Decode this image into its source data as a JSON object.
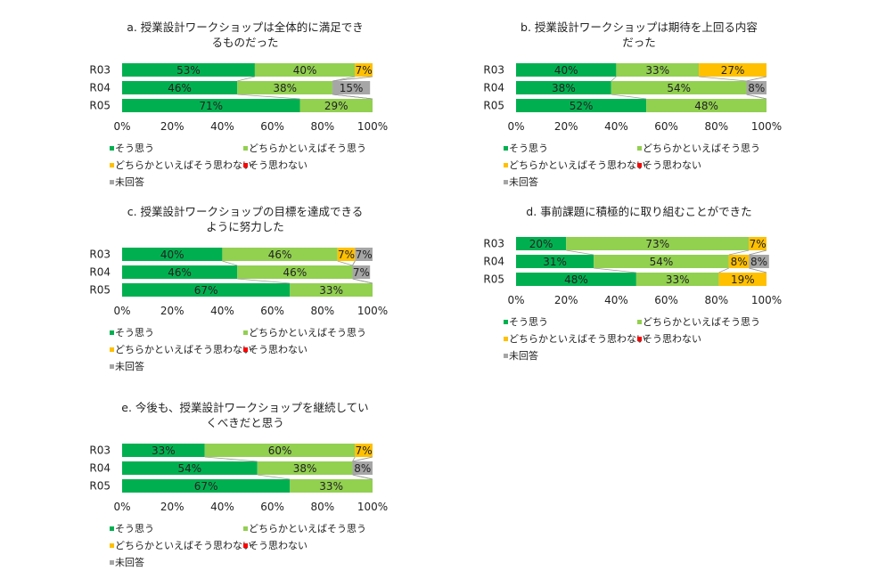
{
  "legend": [
    "そう思う",
    "どちらかといえばそう思う",
    "どちらかといえばそう思わない",
    "そう思わない",
    "未回答"
  ],
  "colors": [
    "#00B050",
    "#92D050",
    "#FFC000",
    "#FF0000",
    "#A6A6A6"
  ],
  "chart_data": [
    {
      "type": "bar",
      "stacked": "100%",
      "orientation": "horizontal",
      "title": "a.  授業設計ワークショップは全体的に満足できるものだった",
      "title_lines": [
        "a.  授業設計ワークショップは全体的に満足でき",
        "るものだった"
      ],
      "categories": [
        "R03",
        "R04",
        "R05"
      ],
      "xlim": [
        0,
        100
      ],
      "x_ticks": [
        "0%",
        "20%",
        "40%",
        "60%",
        "80%",
        "100%"
      ],
      "series": [
        {
          "name": "そう思う",
          "values": [
            53,
            46,
            71
          ]
        },
        {
          "name": "どちらかといえばそう思う",
          "values": [
            40,
            38,
            29
          ]
        },
        {
          "name": "どちらかといえばそう思わない",
          "values": [
            7,
            0,
            0
          ]
        },
        {
          "name": "そう思わない",
          "values": [
            0,
            0,
            0
          ]
        },
        {
          "name": "未回答",
          "values": [
            0,
            15,
            0
          ]
        }
      ]
    },
    {
      "type": "bar",
      "stacked": "100%",
      "orientation": "horizontal",
      "title": "b.  授業設計ワークショップは期待を上回る内容だった",
      "title_lines": [
        "b.  授業設計ワークショップは期待を上回る内容",
        "だった"
      ],
      "categories": [
        "R03",
        "R04",
        "R05"
      ],
      "xlim": [
        0,
        100
      ],
      "x_ticks": [
        "0%",
        "20%",
        "40%",
        "60%",
        "80%",
        "100%"
      ],
      "series": [
        {
          "name": "そう思う",
          "values": [
            40,
            38,
            52
          ]
        },
        {
          "name": "どちらかといえばそう思う",
          "values": [
            33,
            54,
            48
          ]
        },
        {
          "name": "どちらかといえばそう思わない",
          "values": [
            27,
            0,
            0
          ]
        },
        {
          "name": "そう思わない",
          "values": [
            0,
            0,
            0
          ]
        },
        {
          "name": "未回答",
          "values": [
            0,
            8,
            0
          ]
        }
      ]
    },
    {
      "type": "bar",
      "stacked": "100%",
      "orientation": "horizontal",
      "title": "c.  授業設計ワークショップの目標を達成できるように努力した",
      "title_lines": [
        "c.  授業設計ワークショップの目標を達成できる",
        "ように努力した"
      ],
      "categories": [
        "R03",
        "R04",
        "R05"
      ],
      "xlim": [
        0,
        100
      ],
      "x_ticks": [
        "0%",
        "20%",
        "40%",
        "60%",
        "80%",
        "100%"
      ],
      "series": [
        {
          "name": "そう思う",
          "values": [
            40,
            46,
            67
          ]
        },
        {
          "name": "どちらかといえばそう思う",
          "values": [
            46,
            46,
            33
          ]
        },
        {
          "name": "どちらかといえばそう思わない",
          "values": [
            7,
            0,
            0
          ]
        },
        {
          "name": "そう思わない",
          "values": [
            0,
            0,
            0
          ]
        },
        {
          "name": "未回答",
          "values": [
            7,
            7,
            0
          ]
        }
      ]
    },
    {
      "type": "bar",
      "stacked": "100%",
      "orientation": "horizontal",
      "title": "d.  事前課題に積極的に取り組むことができた",
      "title_lines": [
        "d.  事前課題に積極的に取り組むことができた"
      ],
      "categories": [
        "R03",
        "R04",
        "R05"
      ],
      "xlim": [
        0,
        100
      ],
      "x_ticks": [
        "0%",
        "20%",
        "40%",
        "60%",
        "80%",
        "100%"
      ],
      "series": [
        {
          "name": "そう思う",
          "values": [
            20,
            31,
            48
          ]
        },
        {
          "name": "どちらかといえばそう思う",
          "values": [
            73,
            54,
            33
          ]
        },
        {
          "name": "どちらかといえばそう思わない",
          "values": [
            7,
            8,
            19
          ]
        },
        {
          "name": "そう思わない",
          "values": [
            0,
            0,
            0
          ]
        },
        {
          "name": "未回答",
          "values": [
            0,
            8,
            0
          ]
        }
      ]
    },
    {
      "type": "bar",
      "stacked": "100%",
      "orientation": "horizontal",
      "title": "e.  今後も、授業設計ワークショップを継続していくべきだと思う",
      "title_lines": [
        "e.  今後も、授業設計ワークショップを継続してい",
        "くべきだと思う"
      ],
      "categories": [
        "R03",
        "R04",
        "R05"
      ],
      "xlim": [
        0,
        100
      ],
      "x_ticks": [
        "0%",
        "20%",
        "40%",
        "60%",
        "80%",
        "100%"
      ],
      "series": [
        {
          "name": "そう思う",
          "values": [
            33,
            54,
            67
          ]
        },
        {
          "name": "どちらかといえばそう思う",
          "values": [
            60,
            38,
            33
          ]
        },
        {
          "name": "どちらかといえばそう思わない",
          "values": [
            7,
            0,
            0
          ]
        },
        {
          "name": "そう思わない",
          "values": [
            0,
            0,
            0
          ]
        },
        {
          "name": "未回答",
          "values": [
            0,
            8,
            0
          ]
        }
      ]
    }
  ]
}
